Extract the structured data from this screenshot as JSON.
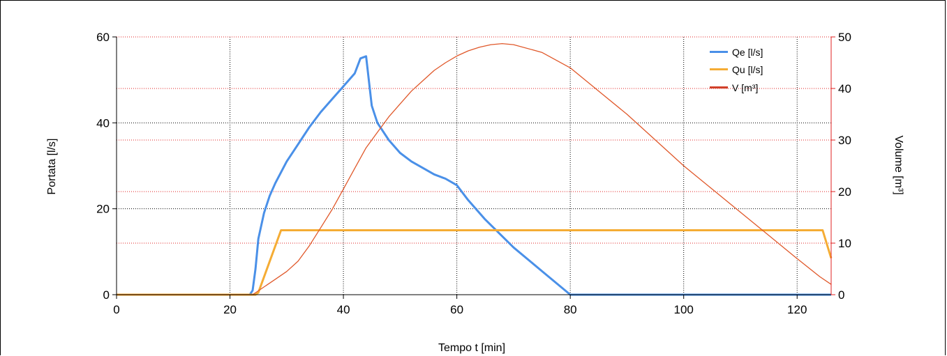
{
  "chart_data": {
    "type": "line",
    "xlabel": "Tempo t [min]",
    "ylabel": "Portata [l/s]",
    "y2label": "Volume [m³]",
    "xlim": [
      0,
      126
    ],
    "ylim": [
      0,
      60
    ],
    "y2lim": [
      0,
      50
    ],
    "xticks": [
      0,
      20,
      40,
      60,
      80,
      100,
      120
    ],
    "yticks": [
      0,
      20,
      40,
      60
    ],
    "y2ticks": [
      0,
      10,
      20,
      30,
      40,
      50
    ],
    "grid": true,
    "legend_position": "top-right",
    "series": [
      {
        "name": "Qe [l/s]",
        "axis": "left",
        "color": "#4a90e8",
        "x": [
          0,
          23.5,
          24,
          24.5,
          25,
          26,
          27,
          28,
          30,
          32,
          34,
          36,
          38,
          40,
          42,
          43,
          44,
          45,
          46,
          48,
          50,
          52,
          54,
          56,
          58,
          60,
          62,
          65,
          70,
          75,
          80,
          90,
          100,
          110,
          120,
          126
        ],
        "y": [
          0,
          0,
          1,
          6,
          13,
          19,
          23,
          26,
          31,
          35,
          39,
          42.5,
          45.5,
          48.5,
          51.5,
          55,
          55.5,
          44,
          40,
          36,
          33,
          31,
          29.5,
          28,
          27,
          25.5,
          22,
          17.5,
          11,
          5.5,
          0,
          0,
          0,
          0,
          0,
          0
        ]
      },
      {
        "name": "Qu [l/s]",
        "axis": "left",
        "color": "#f5ac34",
        "x": [
          0,
          24.5,
          25,
          29,
          40,
          60,
          80,
          100,
          124.5,
          126
        ],
        "y": [
          0,
          0,
          0.5,
          15,
          15,
          15,
          15,
          15,
          15,
          8.5
        ]
      },
      {
        "name": "V [m³]",
        "axis": "right",
        "color": "#e0582a",
        "x": [
          0,
          24,
          26,
          28,
          30,
          32,
          34,
          36,
          38,
          40,
          42,
          44,
          46,
          48,
          50,
          52,
          54,
          56,
          58,
          60,
          62,
          64,
          66,
          68,
          70,
          75,
          80,
          85,
          90,
          95,
          100,
          105,
          110,
          115,
          120,
          124,
          126
        ],
        "y": [
          0,
          0,
          1.5,
          3,
          4.5,
          6.5,
          9.5,
          13,
          16.5,
          20.5,
          24.5,
          28.5,
          31.5,
          34.5,
          37,
          39.5,
          41.5,
          43.5,
          45,
          46.3,
          47.3,
          48,
          48.5,
          48.7,
          48.5,
          47,
          44,
          39.5,
          35,
          30,
          25,
          20.5,
          16,
          11.5,
          7,
          3.5,
          2
        ]
      }
    ]
  }
}
